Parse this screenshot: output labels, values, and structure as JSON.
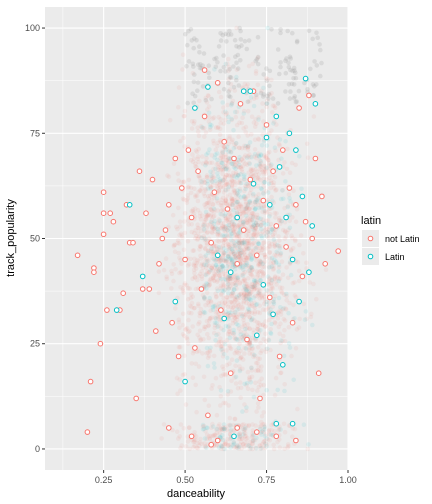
{
  "chart_data": {
    "type": "scatter",
    "xlabel": "danceability",
    "ylabel": "track_popularity",
    "xlim": [
      0.07,
      1.0
    ],
    "ylim": [
      -5,
      105
    ],
    "x_ticks": [
      0.25,
      0.5,
      0.75,
      1.0
    ],
    "x_tick_labels": [
      "0.25",
      "0.50",
      "0.75",
      "1.00"
    ],
    "y_ticks": [
      0,
      25,
      50,
      75,
      100
    ],
    "y_tick_labels": [
      "0",
      "25",
      "50",
      "75",
      "100"
    ],
    "grid": true,
    "panel_background": "#ebebeb",
    "legend": {
      "title": "latin",
      "position": "right",
      "entries": [
        {
          "label": "not Latin",
          "color": "#f8766d"
        },
        {
          "label": "Latin",
          "color": "#00bfc4"
        }
      ]
    },
    "series": [
      {
        "name": "not Latin",
        "color": "#f8766d",
        "points": [
          [
            0.17,
            46
          ],
          [
            0.2,
            4
          ],
          [
            0.21,
            16
          ],
          [
            0.22,
            43
          ],
          [
            0.22,
            42
          ],
          [
            0.24,
            25
          ],
          [
            0.25,
            51
          ],
          [
            0.25,
            61
          ],
          [
            0.25,
            56
          ],
          [
            0.26,
            33
          ],
          [
            0.27,
            56
          ],
          [
            0.28,
            54
          ],
          [
            0.3,
            33
          ],
          [
            0.31,
            37
          ],
          [
            0.32,
            58
          ],
          [
            0.33,
            49
          ],
          [
            0.34,
            49
          ],
          [
            0.35,
            12
          ],
          [
            0.36,
            66
          ],
          [
            0.37,
            38
          ],
          [
            0.38,
            56
          ],
          [
            0.39,
            38
          ],
          [
            0.4,
            64
          ],
          [
            0.41,
            28
          ],
          [
            0.42,
            44
          ],
          [
            0.43,
            50
          ],
          [
            0.44,
            52
          ],
          [
            0.45,
            58
          ],
          [
            0.46,
            30
          ],
          [
            0.47,
            69
          ],
          [
            0.48,
            22
          ],
          [
            0.49,
            62
          ],
          [
            0.5,
            45
          ],
          [
            0.51,
            71
          ],
          [
            0.52,
            55
          ],
          [
            0.53,
            24
          ],
          [
            0.54,
            66
          ],
          [
            0.55,
            38
          ],
          [
            0.56,
            79
          ],
          [
            0.56,
            90
          ],
          [
            0.57,
            8
          ],
          [
            0.58,
            49
          ],
          [
            0.59,
            61
          ],
          [
            0.6,
            87
          ],
          [
            0.61,
            33
          ],
          [
            0.62,
            73
          ],
          [
            0.63,
            57
          ],
          [
            0.64,
            18
          ],
          [
            0.65,
            69
          ],
          [
            0.66,
            44
          ],
          [
            0.67,
            82
          ],
          [
            0.68,
            52
          ],
          [
            0.69,
            26
          ],
          [
            0.7,
            64
          ],
          [
            0.71,
            85
          ],
          [
            0.72,
            46
          ],
          [
            0.73,
            12
          ],
          [
            0.74,
            59
          ],
          [
            0.75,
            77
          ],
          [
            0.76,
            36
          ],
          [
            0.77,
            66
          ],
          [
            0.78,
            53
          ],
          [
            0.79,
            22
          ],
          [
            0.8,
            71
          ],
          [
            0.81,
            48
          ],
          [
            0.82,
            62
          ],
          [
            0.83,
            30
          ],
          [
            0.84,
            58
          ],
          [
            0.85,
            81
          ],
          [
            0.86,
            41
          ],
          [
            0.87,
            54
          ],
          [
            0.88,
            84
          ],
          [
            0.89,
            50
          ],
          [
            0.9,
            69
          ],
          [
            0.91,
            18
          ],
          [
            0.92,
            60
          ],
          [
            0.93,
            44
          ],
          [
            0.97,
            47
          ],
          [
            0.52,
            3
          ],
          [
            0.6,
            2
          ],
          [
            0.66,
            5
          ],
          [
            0.72,
            4
          ],
          [
            0.78,
            3
          ],
          [
            0.84,
            2
          ],
          [
            0.45,
            5
          ],
          [
            0.58,
            1
          ]
        ]
      },
      {
        "name": "Latin",
        "color": "#00bfc4",
        "points": [
          [
            0.29,
            33
          ],
          [
            0.33,
            58
          ],
          [
            0.37,
            41
          ],
          [
            0.47,
            35
          ],
          [
            0.5,
            16
          ],
          [
            0.53,
            81
          ],
          [
            0.57,
            86
          ],
          [
            0.6,
            46
          ],
          [
            0.62,
            31
          ],
          [
            0.64,
            42
          ],
          [
            0.66,
            55
          ],
          [
            0.68,
            85
          ],
          [
            0.7,
            85
          ],
          [
            0.71,
            63
          ],
          [
            0.72,
            27
          ],
          [
            0.74,
            39
          ],
          [
            0.75,
            74
          ],
          [
            0.76,
            58
          ],
          [
            0.77,
            32
          ],
          [
            0.78,
            79
          ],
          [
            0.79,
            67
          ],
          [
            0.8,
            20
          ],
          [
            0.81,
            55
          ],
          [
            0.82,
            75
          ],
          [
            0.83,
            45
          ],
          [
            0.84,
            71
          ],
          [
            0.85,
            35
          ],
          [
            0.86,
            60
          ],
          [
            0.87,
            88
          ],
          [
            0.88,
            42
          ],
          [
            0.89,
            53
          ],
          [
            0.9,
            82
          ],
          [
            0.78,
            6
          ],
          [
            0.83,
            6
          ],
          [
            0.65,
            3
          ]
        ]
      }
    ]
  }
}
